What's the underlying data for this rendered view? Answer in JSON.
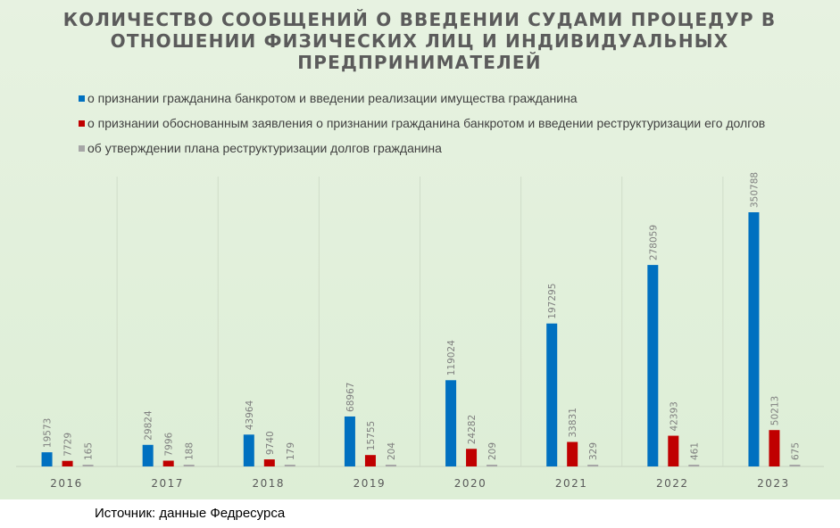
{
  "chart_data": {
    "type": "bar",
    "title": "КОЛИЧЕСТВО СООБЩЕНИЙ О ВВЕДЕНИИ СУДАМИ ПРОЦЕДУР В ОТНОШЕНИИ ФИЗИЧЕСКИХ ЛИЦ И ИНДИВИДУАЛЬНЫХ ПРЕДПРИНИМАТЕЛЕЙ",
    "title_lines": [
      "КОЛИЧЕСТВО СООБЩЕНИЙ О ВВЕДЕНИИ СУДАМИ ПРОЦЕДУР В",
      "ОТНОШЕНИИ ФИЗИЧЕСКИХ ЛИЦ И ИНДИВИДУАЛЬНЫХ",
      "ПРЕДПРИНИМАТЕЛЕЙ"
    ],
    "categories": [
      "2016",
      "2017",
      "2018",
      "2019",
      "2020",
      "2021",
      "2022",
      "2023"
    ],
    "series": [
      {
        "name": "о признании гражданина банкротом и введении реализации имущества гражданина",
        "color": "#0070c0",
        "values": [
          19573,
          29824,
          43964,
          68967,
          119024,
          197295,
          278059,
          350788
        ]
      },
      {
        "name": "о признании обоснованным заявления о признании гражданина банкротом и введении реструктуризации его долгов",
        "color": "#c00000",
        "values": [
          7729,
          7996,
          9740,
          15755,
          24282,
          33831,
          42393,
          50213
        ]
      },
      {
        "name": "об утверждении плана реструктуризации долгов гражданина",
        "color": "#a6a6a6",
        "values": [
          165,
          188,
          179,
          204,
          209,
          329,
          461,
          675
        ]
      }
    ],
    "xlabel": "",
    "ylabel": "",
    "ylim": [
      0,
      400000
    ],
    "legend_position": "top-left",
    "grid": "vertical separators between categories"
  },
  "source_text": "Источник: данные Федресурса"
}
